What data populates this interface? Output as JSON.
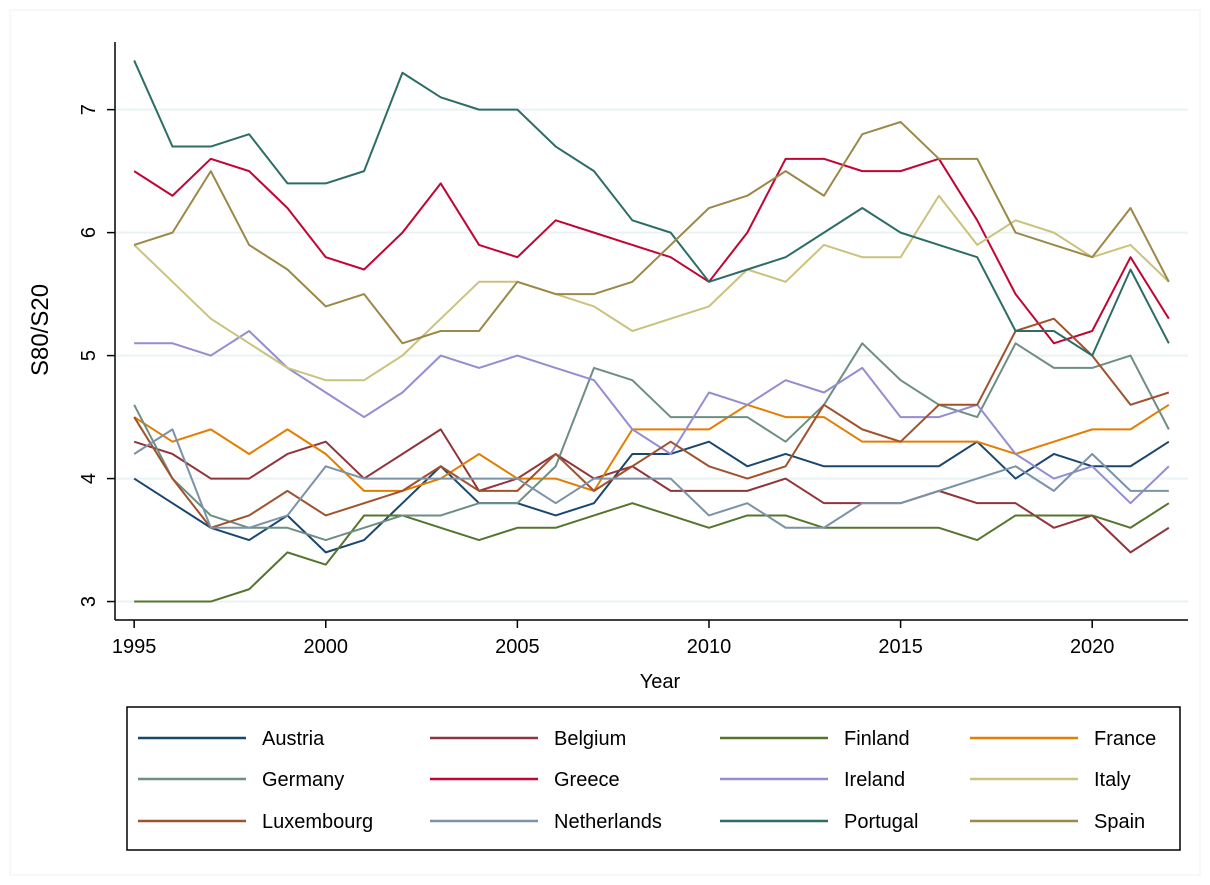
{
  "chart_data": {
    "type": "line",
    "x_label": "Year",
    "y_label": "S80/S20",
    "x": [
      1995,
      1996,
      1997,
      1998,
      1999,
      2000,
      2001,
      2002,
      2003,
      2004,
      2005,
      2006,
      2007,
      2008,
      2009,
      2010,
      2011,
      2012,
      2013,
      2014,
      2015,
      2016,
      2017,
      2018,
      2019,
      2020,
      2021,
      2022
    ],
    "xlim": [
      1994.5,
      2022.5
    ],
    "xticks": [
      1995,
      2000,
      2005,
      2010,
      2015,
      2020
    ],
    "ylim": [
      2.85,
      7.55
    ],
    "yticks": [
      3,
      4,
      5,
      6,
      7
    ],
    "grid": true,
    "series": [
      {
        "name": "Austria",
        "color": "#1a476f",
        "values": [
          4.0,
          3.8,
          3.6,
          3.5,
          3.7,
          3.4,
          3.5,
          3.8,
          4.1,
          3.8,
          3.8,
          3.7,
          3.8,
          4.2,
          4.2,
          4.3,
          4.1,
          4.2,
          4.1,
          4.1,
          4.1,
          4.1,
          4.3,
          4.0,
          4.2,
          4.1,
          4.1,
          4.3
        ]
      },
      {
        "name": "Belgium",
        "color": "#90353b",
        "values": [
          4.3,
          4.2,
          4.0,
          4.0,
          4.2,
          4.3,
          4.0,
          4.2,
          4.4,
          3.9,
          4.0,
          4.2,
          4.0,
          4.1,
          3.9,
          3.9,
          3.9,
          4.0,
          3.8,
          3.8,
          3.8,
          3.9,
          3.8,
          3.8,
          3.6,
          3.7,
          3.4,
          3.6
        ]
      },
      {
        "name": "Finland",
        "color": "#55752f",
        "values": [
          3.0,
          3.0,
          3.0,
          3.1,
          3.4,
          3.3,
          3.7,
          3.7,
          3.6,
          3.5,
          3.6,
          3.6,
          3.7,
          3.8,
          3.7,
          3.6,
          3.7,
          3.7,
          3.6,
          3.6,
          3.6,
          3.6,
          3.5,
          3.7,
          3.7,
          3.7,
          3.6,
          3.8
        ]
      },
      {
        "name": "France",
        "color": "#e37e00",
        "values": [
          4.5,
          4.3,
          4.4,
          4.2,
          4.4,
          4.2,
          3.9,
          3.9,
          4.0,
          4.2,
          4.0,
          4.0,
          3.9,
          4.4,
          4.4,
          4.4,
          4.6,
          4.5,
          4.5,
          4.3,
          4.3,
          4.3,
          4.3,
          4.2,
          4.3,
          4.4,
          4.4,
          4.6
        ]
      },
      {
        "name": "Germany",
        "color": "#6e8e84",
        "values": [
          4.6,
          4.0,
          3.7,
          3.6,
          3.6,
          3.5,
          3.6,
          3.7,
          3.7,
          3.8,
          3.8,
          4.1,
          4.9,
          4.8,
          4.5,
          4.5,
          4.5,
          4.3,
          4.6,
          5.1,
          4.8,
          4.6,
          4.5,
          5.1,
          4.9,
          4.9,
          5.0,
          4.4
        ]
      },
      {
        "name": "Greece",
        "color": "#c10534",
        "values": [
          6.5,
          6.3,
          6.6,
          6.5,
          6.2,
          5.8,
          5.7,
          6.0,
          6.4,
          5.9,
          5.8,
          6.1,
          6.0,
          5.9,
          5.8,
          5.6,
          6.0,
          6.6,
          6.6,
          6.5,
          6.5,
          6.6,
          6.1,
          5.5,
          5.1,
          5.2,
          5.8,
          5.3
        ]
      },
      {
        "name": "Ireland",
        "color": "#938dd2",
        "values": [
          5.1,
          5.1,
          5.0,
          5.2,
          4.9,
          4.7,
          4.5,
          4.7,
          5.0,
          4.9,
          5.0,
          4.9,
          4.8,
          4.4,
          4.2,
          4.7,
          4.6,
          4.8,
          4.7,
          4.9,
          4.5,
          4.5,
          4.6,
          4.2,
          4.0,
          4.1,
          3.8,
          4.1
        ]
      },
      {
        "name": "Italy",
        "color": "#cac27e",
        "values": [
          5.9,
          5.6,
          5.3,
          5.1,
          4.9,
          4.8,
          4.8,
          5.0,
          5.3,
          5.6,
          5.6,
          5.5,
          5.4,
          5.2,
          5.3,
          5.4,
          5.7,
          5.6,
          5.9,
          5.8,
          5.8,
          6.3,
          5.9,
          6.1,
          6.0,
          5.8,
          5.9,
          5.6
        ]
      },
      {
        "name": "Luxembourg",
        "color": "#a0522d",
        "values": [
          4.5,
          4.0,
          3.6,
          3.7,
          3.9,
          3.7,
          3.8,
          3.9,
          4.1,
          3.9,
          3.9,
          4.2,
          3.9,
          4.1,
          4.3,
          4.1,
          4.0,
          4.1,
          4.6,
          4.4,
          4.3,
          4.6,
          4.6,
          5.2,
          5.3,
          5.0,
          4.6,
          4.7
        ]
      },
      {
        "name": "Netherlands",
        "color": "#7b92a8",
        "values": [
          4.2,
          4.4,
          3.6,
          3.6,
          3.7,
          4.1,
          4.0,
          4.0,
          4.0,
          4.0,
          4.0,
          3.8,
          4.0,
          4.0,
          4.0,
          3.7,
          3.8,
          3.6,
          3.6,
          3.8,
          3.8,
          3.9,
          4.0,
          4.1,
          3.9,
          4.2,
          3.9,
          3.9
        ]
      },
      {
        "name": "Portugal",
        "color": "#2d6d66",
        "values": [
          7.4,
          6.7,
          6.7,
          6.8,
          6.4,
          6.4,
          6.5,
          7.3,
          7.1,
          7.0,
          7.0,
          6.7,
          6.5,
          6.1,
          6.0,
          5.6,
          5.7,
          5.8,
          6.0,
          6.2,
          6.0,
          5.9,
          5.8,
          5.2,
          5.2,
          5.0,
          5.7,
          5.1
        ]
      },
      {
        "name": "Spain",
        "color": "#9c8847",
        "values": [
          5.9,
          6.0,
          6.5,
          5.9,
          5.7,
          5.4,
          5.5,
          5.1,
          5.2,
          5.2,
          5.6,
          5.5,
          5.5,
          5.6,
          5.9,
          6.2,
          6.3,
          6.5,
          6.3,
          6.8,
          6.9,
          6.6,
          6.6,
          6.0,
          5.9,
          5.8,
          6.2,
          5.6
        ]
      }
    ]
  }
}
